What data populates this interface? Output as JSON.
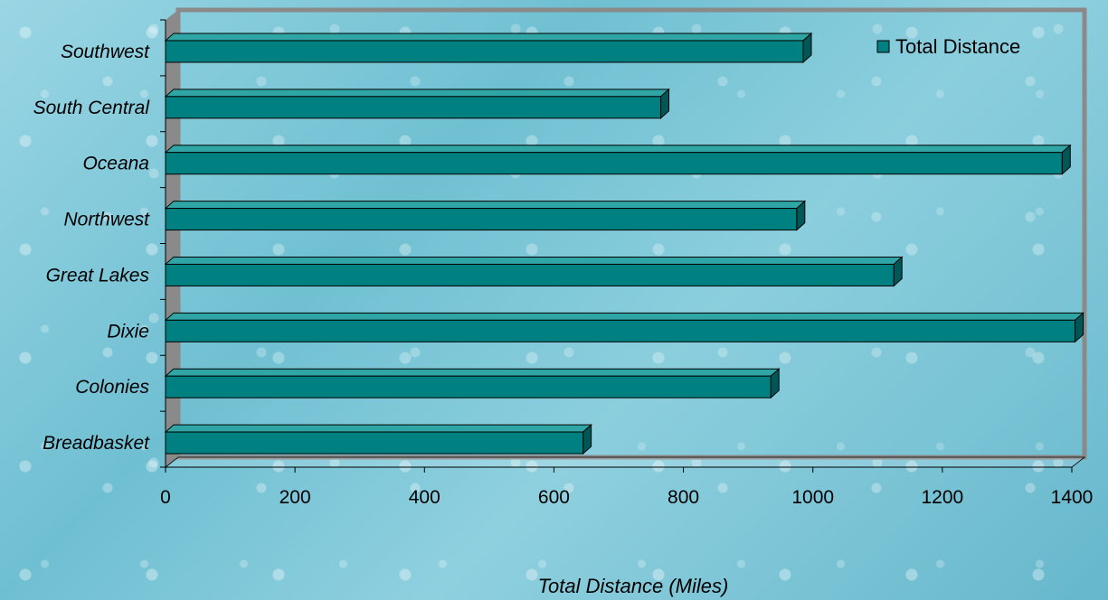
{
  "chart_data": {
    "type": "bar",
    "orientation": "horizontal",
    "categories": [
      "Southwest",
      "South Central",
      "Oceana",
      "Northwest",
      "Great Lakes",
      "Dixie",
      "Colonies",
      "Breadbasket"
    ],
    "series": [
      {
        "name": "Total Distance",
        "values": [
          985,
          765,
          1385,
          975,
          1125,
          1405,
          935,
          645
        ]
      }
    ],
    "xlabel": "Total Distance (Miles)",
    "ylabel": "",
    "xlim": [
      0,
      1400
    ],
    "xticks": [
      "0",
      "200",
      "400",
      "600",
      "800",
      "1000",
      "1200",
      "1400"
    ],
    "grid": false,
    "legend": "top-right",
    "colors": {
      "bar_front": "#008080",
      "bar_top": "#2fa5a5",
      "bar_side": "#005757",
      "wall": "#8a8a8a",
      "axis_text": "#000000"
    }
  }
}
